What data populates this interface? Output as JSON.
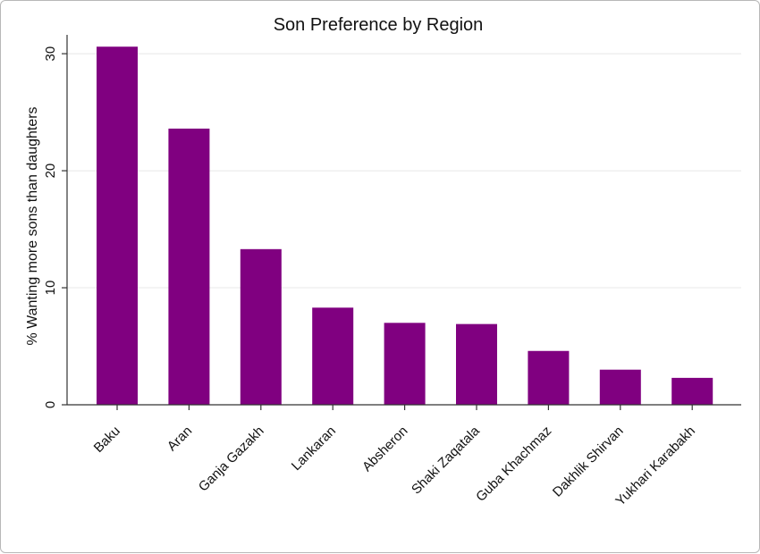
{
  "chart_data": {
    "type": "bar",
    "title": "Son Preference by Region",
    "xlabel": "",
    "ylabel": "% Wanting more sons than daughters",
    "categories": [
      "Baku",
      "Aran",
      "Ganja Gazakh",
      "Lankaran",
      "Absheron",
      "Shaki Zaqatala",
      "Guba Khachmaz",
      "Dakhlik Shirvan",
      "Yukhari Karabakh"
    ],
    "values": [
      30.6,
      23.6,
      13.3,
      8.3,
      7.0,
      6.9,
      4.6,
      3.0,
      2.3
    ],
    "ylim": [
      0,
      31
    ],
    "yticks": [
      0,
      10,
      20,
      30
    ],
    "bar_color": "#800080",
    "grid": true,
    "legend": "none"
  }
}
